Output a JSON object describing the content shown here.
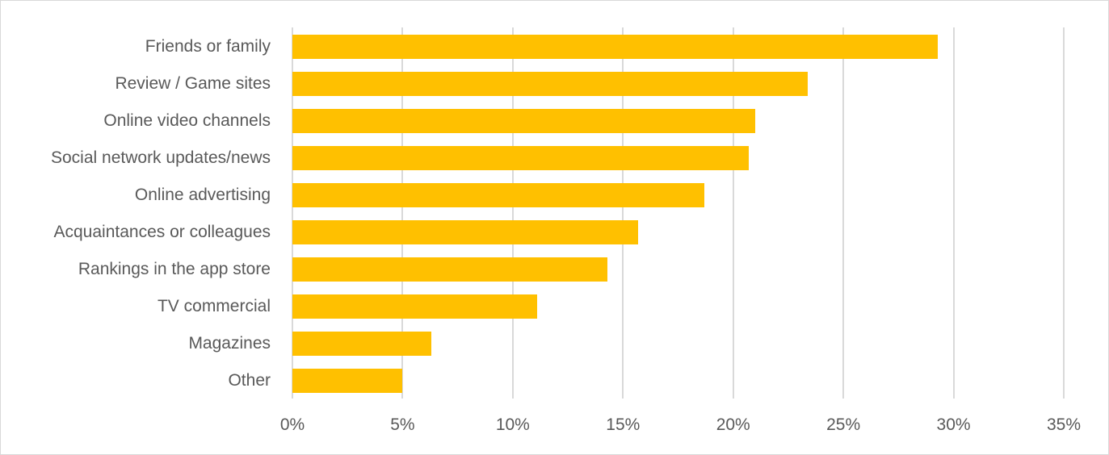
{
  "chart_data": {
    "type": "bar",
    "orientation": "horizontal",
    "title": "",
    "xlabel": "",
    "ylabel": "",
    "categories": [
      "Friends or family",
      "Review / Game sites",
      "Online video channels",
      "Social network updates/news",
      "Online advertising",
      "Acquaintances or colleagues",
      "Rankings in the app store",
      "TV commercial",
      "Magazines",
      "Other"
    ],
    "values": [
      29.3,
      23.4,
      21.0,
      20.7,
      18.7,
      15.7,
      14.3,
      11.1,
      6.3,
      5.0
    ],
    "xlim": [
      0,
      35
    ],
    "x_ticks": [
      "0%",
      "5%",
      "10%",
      "15%",
      "20%",
      "25%",
      "30%",
      "35%"
    ],
    "grid": "vertical",
    "legend": "none",
    "bar_color": "#ffc000"
  }
}
